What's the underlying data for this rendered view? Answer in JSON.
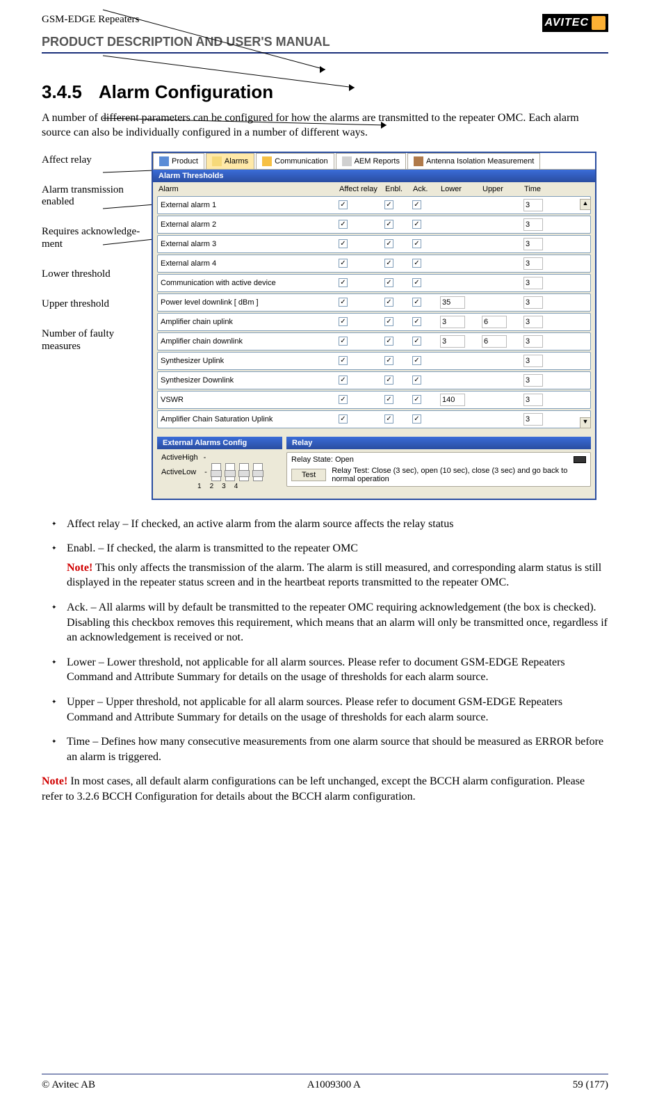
{
  "header": {
    "doc_type": "GSM-EDGE Repeaters",
    "product_desc": "PRODUCT DESCRIPTION AND USER'S MANUAL",
    "logo_text": "AVITEC"
  },
  "section": {
    "number": "3.4.5",
    "title": "Alarm Configuration",
    "intro": "A number of different parameters can be configured for how the alarms are transmitted to the repeater OMC. Each alarm source can also be individually configured in a number of different ways."
  },
  "side_labels": [
    "Affect relay",
    "Alarm transmission enabled",
    "Requires acknowledge-ment",
    "Lower threshold",
    "Upper threshold",
    "Number of faulty measures"
  ],
  "ui": {
    "tabs": [
      "Product",
      "Alarms",
      "Communication",
      "AEM Reports",
      "Antenna Isolation Measurement"
    ],
    "thresholds_title": "Alarm Thresholds",
    "cols": {
      "alarm": "Alarm",
      "affect": "Affect relay",
      "enbl": "Enbl.",
      "ack": "Ack.",
      "lower": "Lower",
      "upper": "Upper",
      "time": "Time"
    },
    "rows": [
      {
        "name": "External alarm 1",
        "affect": true,
        "enbl": true,
        "ack": true,
        "lower": "",
        "upper": "",
        "time": "3"
      },
      {
        "name": "External alarm 2",
        "affect": true,
        "enbl": true,
        "ack": true,
        "lower": "",
        "upper": "",
        "time": "3"
      },
      {
        "name": "External alarm 3",
        "affect": true,
        "enbl": true,
        "ack": true,
        "lower": "",
        "upper": "",
        "time": "3"
      },
      {
        "name": "External alarm 4",
        "affect": true,
        "enbl": true,
        "ack": true,
        "lower": "",
        "upper": "",
        "time": "3"
      },
      {
        "name": "Communication with active device",
        "affect": true,
        "enbl": true,
        "ack": true,
        "lower": "",
        "upper": "",
        "time": "3"
      },
      {
        "name": "Power level downlink  [ dBm ]",
        "affect": true,
        "enbl": true,
        "ack": true,
        "lower": "35",
        "upper": "",
        "time": "3"
      },
      {
        "name": "Amplifier chain uplink",
        "affect": true,
        "enbl": true,
        "ack": true,
        "lower": "3",
        "upper": "6",
        "time": "3"
      },
      {
        "name": "Amplifier chain downlink",
        "affect": true,
        "enbl": true,
        "ack": true,
        "lower": "3",
        "upper": "6",
        "time": "3"
      },
      {
        "name": "Synthesizer Uplink",
        "affect": true,
        "enbl": true,
        "ack": true,
        "lower": "",
        "upper": "",
        "time": "3"
      },
      {
        "name": "Synthesizer Downlink",
        "affect": true,
        "enbl": true,
        "ack": true,
        "lower": "",
        "upper": "",
        "time": "3"
      },
      {
        "name": "VSWR",
        "affect": true,
        "enbl": true,
        "ack": true,
        "lower": "140",
        "upper": "",
        "time": "3"
      },
      {
        "name": "Amplifier Chain Saturation Uplink",
        "affect": true,
        "enbl": true,
        "ack": true,
        "lower": "",
        "upper": "",
        "time": "3"
      }
    ],
    "ext_cfg": {
      "title": "External Alarms Config",
      "high": "ActiveHigh",
      "low": "ActiveLow",
      "nums": [
        "1",
        "2",
        "3",
        "4"
      ]
    },
    "relay": {
      "title": "Relay",
      "state": "Relay State: Open",
      "test_btn": "Test",
      "test_text": "Relay Test: Close (3 sec), open (10 sec), close (3 sec) and go back to normal operation"
    }
  },
  "bullets": [
    {
      "lead": "Affect relay – If checked, an active alarm from the alarm source affects the relay status"
    },
    {
      "lead": "Enabl. – If checked, the alarm is transmitted to the repeater OMC",
      "note": "Note!",
      "sub": " This only affects the transmission of the alarm. The alarm is still measured, and corresponding alarm status is still displayed in the repeater status screen and in the heartbeat reports transmitted to the repeater OMC."
    },
    {
      "lead": "Ack. – All alarms will by default be transmitted to the repeater OMC requiring acknowledgement (the box is checked). Disabling this checkbox removes this requirement, which means that an alarm will only be transmitted once, regardless if an acknowledgement is received or not."
    },
    {
      "lead": "Lower – Lower threshold, not applicable for all alarm sources. Please refer to document GSM-EDGE Repeaters Command and Attribute Summary for details on the usage of thresholds for each alarm source."
    },
    {
      "lead": "Upper – Upper threshold, not applicable for all alarm sources. Please refer to document GSM-EDGE Repeaters Command and Attribute Summary for details on the usage of thresholds for each alarm source."
    },
    {
      "lead": "Time – Defines how many consecutive measurements from one alarm source that should be measured as ERROR before an alarm is triggered."
    }
  ],
  "bottom_note": {
    "label": "Note!",
    "text": " In most cases, all default alarm configurations can be left unchanged, except the BCCH alarm configuration. Please refer to 3.2.6 BCCH Configuration for details about the BCCH alarm configuration."
  },
  "footer": {
    "left": "© Avitec AB",
    "center": "A1009300 A",
    "right": "59 (177)"
  }
}
